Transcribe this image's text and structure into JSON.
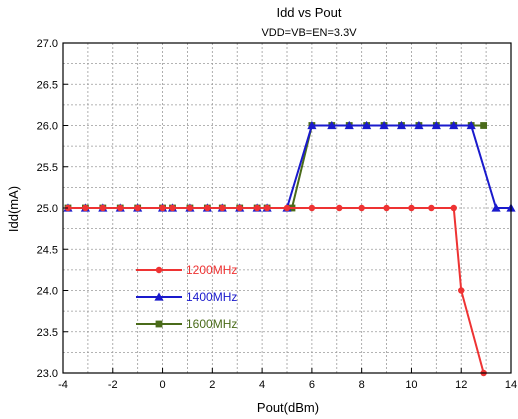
{
  "chart_data": {
    "type": "line",
    "title": "Idd vs Pout",
    "subtitle": "VDD=VB=EN=3.3V",
    "xlabel": "Pout(dBm)",
    "ylabel": "Idd(mA)",
    "xlim": [
      -4,
      14
    ],
    "ylim": [
      23.0,
      27.0
    ],
    "xticks": [
      -4,
      -2,
      0,
      2,
      4,
      6,
      8,
      10,
      12,
      14
    ],
    "yticks": [
      23.0,
      23.5,
      24.0,
      24.5,
      25.0,
      25.5,
      26.0,
      26.5,
      27.0
    ],
    "grid": true,
    "legend_position": "lower-left",
    "series": [
      {
        "name": "1200MHz",
        "color": "#ee3333",
        "marker": "circle",
        "x": [
          -3.8,
          -3.1,
          -2.4,
          -1.7,
          -1.0,
          0.0,
          0.4,
          1.1,
          1.8,
          2.4,
          3.1,
          3.8,
          4.2,
          5.0,
          6.0,
          7.1,
          8.0,
          9.0,
          10.0,
          10.8,
          11.7,
          12.0,
          12.9
        ],
        "y": [
          25.0,
          25.0,
          25.0,
          25.0,
          25.0,
          25.0,
          25.0,
          25.0,
          25.0,
          25.0,
          25.0,
          25.0,
          25.0,
          25.0,
          25.0,
          25.0,
          25.0,
          25.0,
          25.0,
          25.0,
          25.0,
          24.0,
          23.0
        ]
      },
      {
        "name": "1400MHz",
        "color": "#1a1acc",
        "marker": "triangle",
        "x": [
          -3.8,
          -3.1,
          -2.4,
          -1.7,
          -1.0,
          0.0,
          0.4,
          1.1,
          1.8,
          2.4,
          3.1,
          3.8,
          4.2,
          5.0,
          6.0,
          6.8,
          7.5,
          8.2,
          8.9,
          9.6,
          10.3,
          11.0,
          11.7,
          12.4,
          13.4,
          14.0
        ],
        "y": [
          25.0,
          25.0,
          25.0,
          25.0,
          25.0,
          25.0,
          25.0,
          25.0,
          25.0,
          25.0,
          25.0,
          25.0,
          25.0,
          25.0,
          26.0,
          26.0,
          26.0,
          26.0,
          26.0,
          26.0,
          26.0,
          26.0,
          26.0,
          26.0,
          25.0,
          25.0
        ]
      },
      {
        "name": "1600MHz",
        "color": "#4a6b1a",
        "marker": "square",
        "x": [
          -3.8,
          -3.1,
          -2.4,
          -1.7,
          -1.0,
          0.0,
          0.4,
          1.1,
          1.8,
          2.4,
          3.1,
          3.8,
          4.2,
          5.2,
          6.0,
          6.8,
          7.5,
          8.2,
          8.9,
          9.6,
          10.3,
          11.0,
          11.7,
          12.4,
          12.9
        ],
        "y": [
          25.0,
          25.0,
          25.0,
          25.0,
          25.0,
          25.0,
          25.0,
          25.0,
          25.0,
          25.0,
          25.0,
          25.0,
          25.0,
          25.0,
          26.0,
          26.0,
          26.0,
          26.0,
          26.0,
          26.0,
          26.0,
          26.0,
          26.0,
          26.0,
          26.0
        ]
      }
    ]
  }
}
